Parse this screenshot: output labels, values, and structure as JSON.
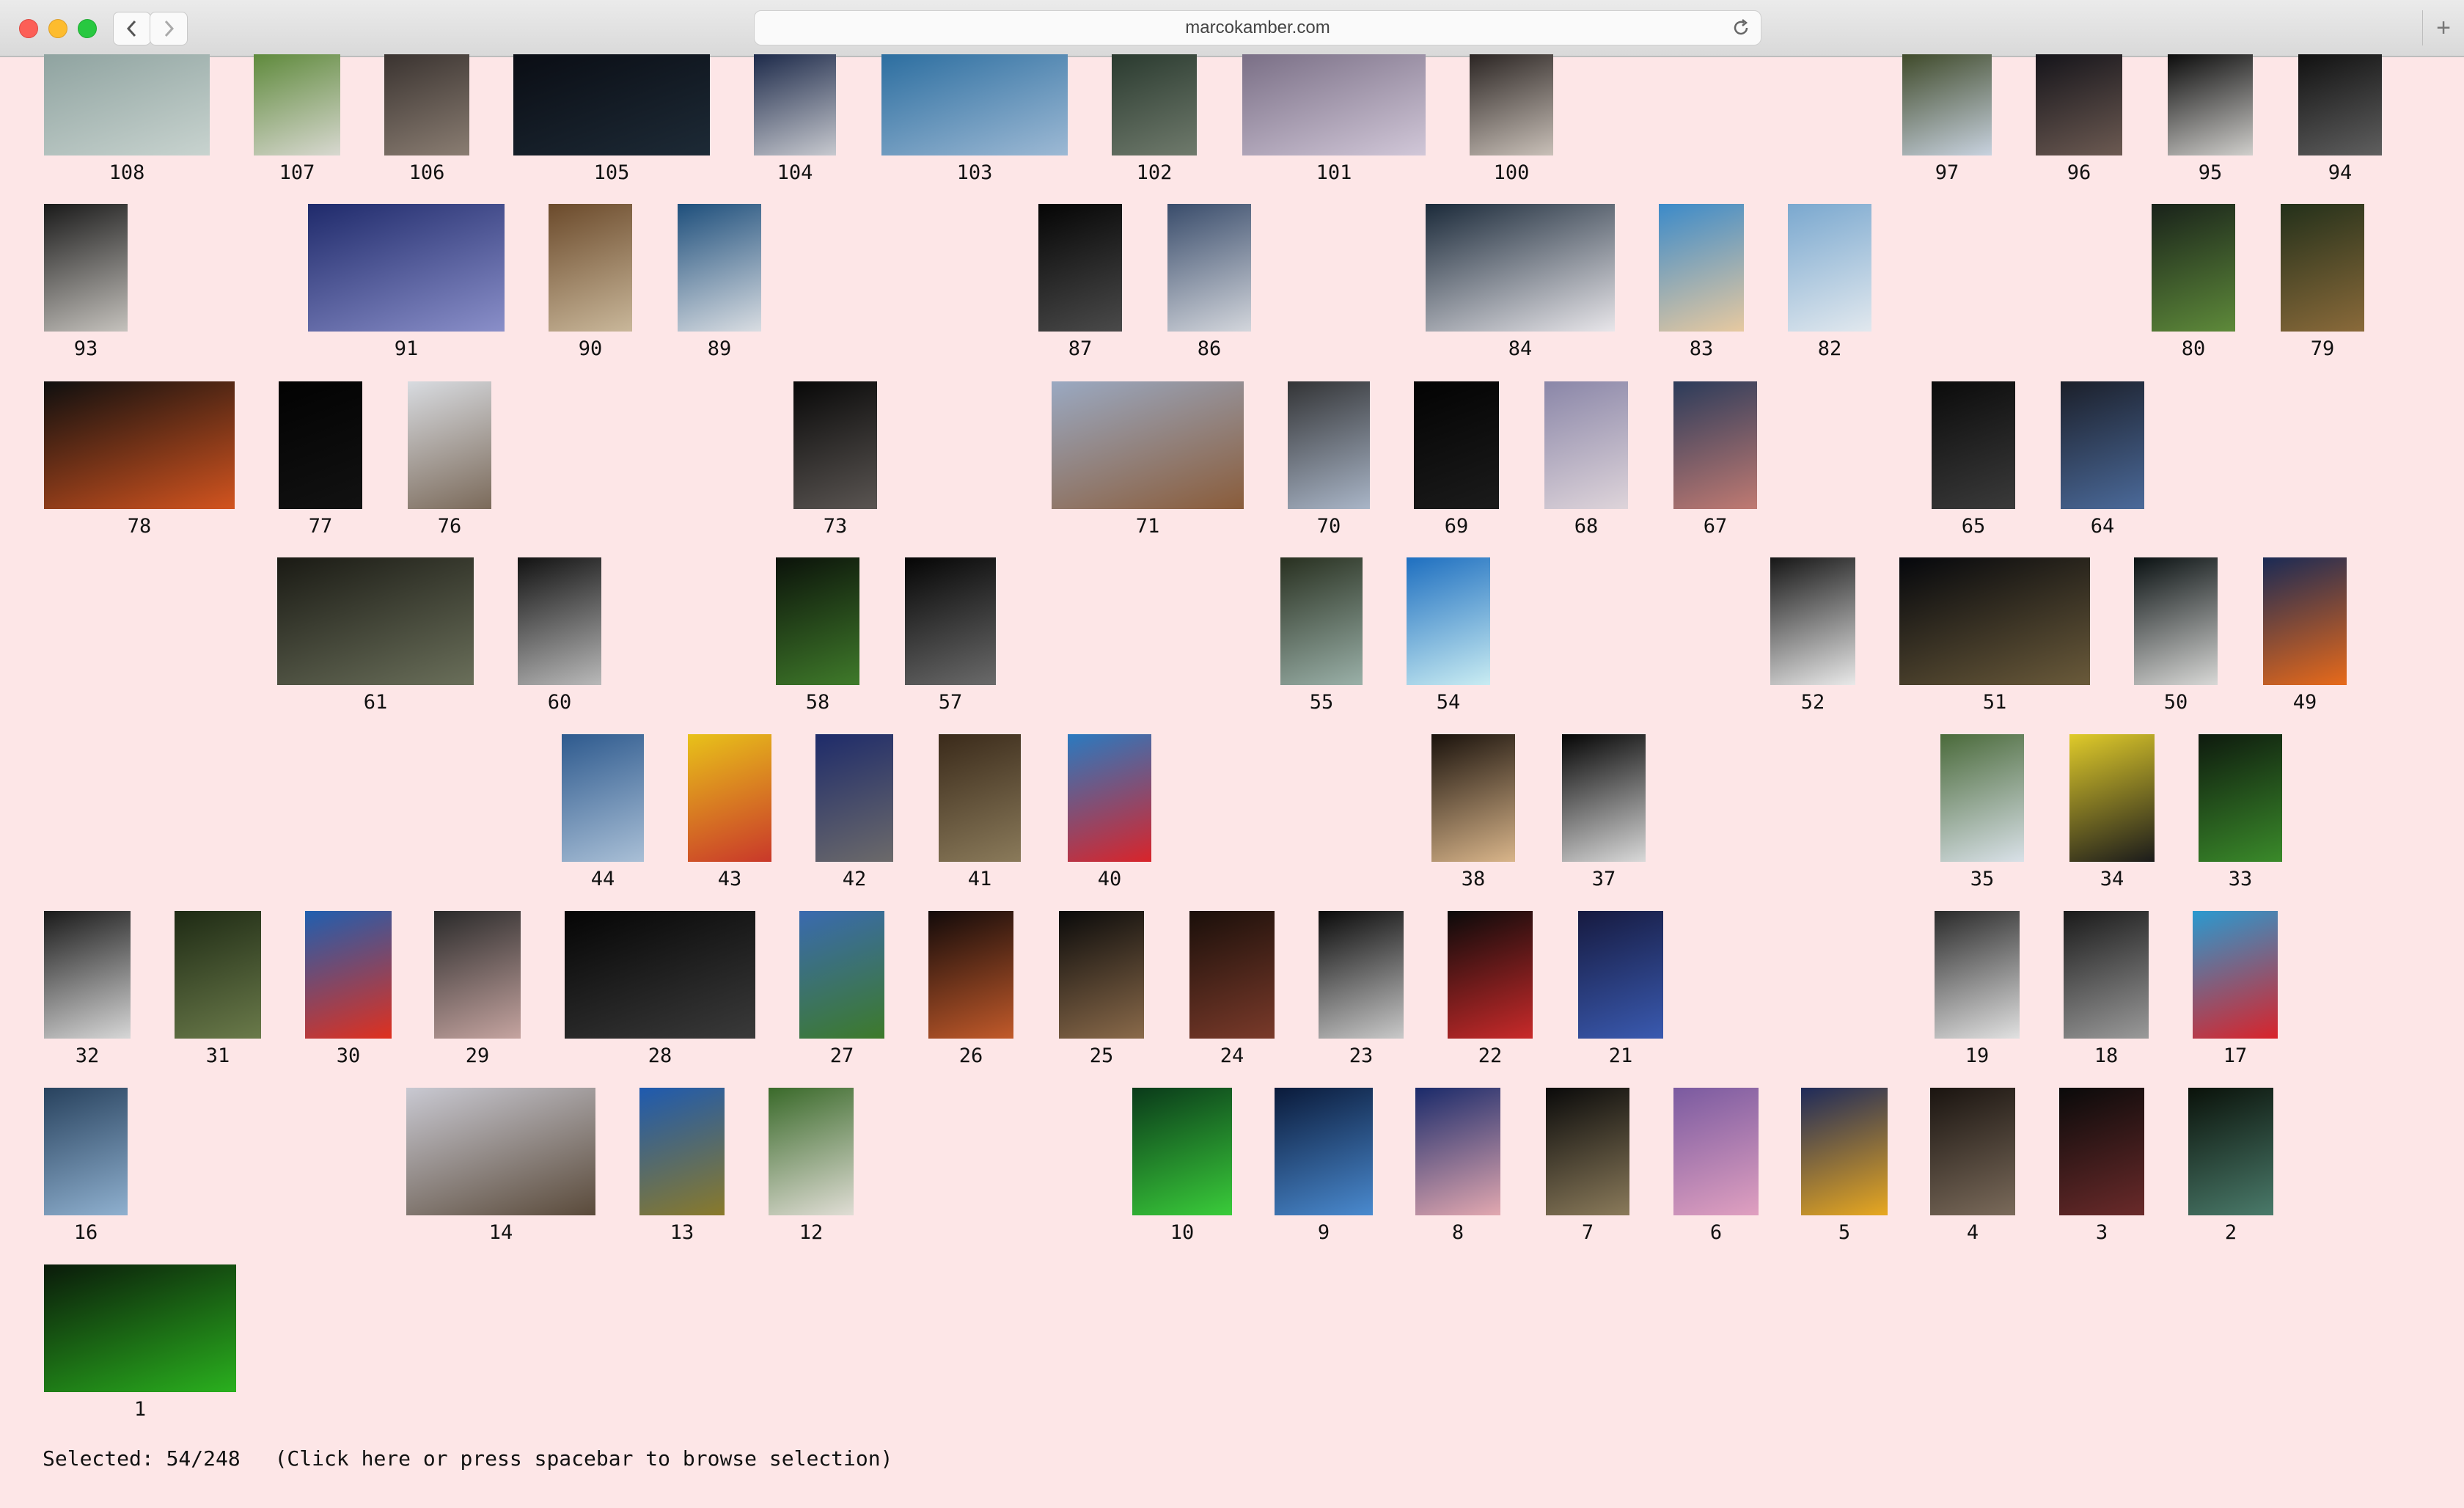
{
  "browser": {
    "url": "marcokamber.com",
    "new_tab_label": "+"
  },
  "thumbnails": [
    {
      "label": "108",
      "c1": "#8fa3a0",
      "c2": "#c8d3cf"
    },
    {
      "label": "107",
      "c1": "#5f8a3c",
      "c2": "#d8d8d0"
    },
    {
      "label": "106",
      "c1": "#3a3330",
      "c2": "#8a7d72"
    },
    {
      "label": "105",
      "c1": "#0a0d14",
      "c2": "#1d2a36"
    },
    {
      "label": "104",
      "c1": "#1d2a4a",
      "c2": "#c7c9cf"
    },
    {
      "label": "103",
      "c1": "#2c6ea0",
      "c2": "#9db9d4"
    },
    {
      "label": "102",
      "c1": "#2a3a2f",
      "c2": "#6f7a6c"
    },
    {
      "label": "101",
      "c1": "#7a6f86",
      "c2": "#d1c7d8"
    },
    {
      "label": "100",
      "c1": "#2b2523",
      "c2": "#c9c0b8"
    },
    {
      "label": "97",
      "c1": "#3f4a2a",
      "c2": "#c8d2df"
    },
    {
      "label": "96",
      "c1": "#15141a",
      "c2": "#6c5a52"
    },
    {
      "label": "95",
      "c1": "#0c0c0c",
      "c2": "#d0cfcc"
    },
    {
      "label": "94",
      "c1": "#111111",
      "c2": "#5f5f5f"
    },
    {
      "label": "93",
      "c1": "#1a1a1a",
      "c2": "#c5c2bd"
    },
    {
      "label": "91",
      "c1": "#1f2a6b",
      "c2": "#8a8fc9"
    },
    {
      "label": "90",
      "c1": "#6b4a2b",
      "c2": "#c9b79a"
    },
    {
      "label": "89",
      "c1": "#1e4f7c",
      "c2": "#d9dde2"
    },
    {
      "label": "87",
      "c1": "#050505",
      "c2": "#4a4a4a"
    },
    {
      "label": "86",
      "c1": "#394c6b",
      "c2": "#d3d6dc"
    },
    {
      "label": "84",
      "c1": "#1b2a3a",
      "c2": "#e8e6ea"
    },
    {
      "label": "83",
      "c1": "#3b8ac9",
      "c2": "#e7c9a0"
    },
    {
      "label": "82",
      "c1": "#7aa8cf",
      "c2": "#e1e8ee"
    },
    {
      "label": "80",
      "c1": "#19221a",
      "c2": "#5e8a3a"
    },
    {
      "label": "79",
      "c1": "#23301a",
      "c2": "#8a6a3a"
    },
    {
      "label": "78",
      "c1": "#0f0f0f",
      "c2": "#d3541f"
    },
    {
      "label": "77",
      "c1": "#020202",
      "c2": "#121212"
    },
    {
      "label": "76",
      "c1": "#d8dbe0",
      "c2": "#7b6a5a"
    },
    {
      "label": "73",
      "c1": "#080808",
      "c2": "#5a5552"
    },
    {
      "label": "71",
      "c1": "#9aa9c2",
      "c2": "#8a5c3a"
    },
    {
      "label": "70",
      "c1": "#333436",
      "c2": "#a9b5c7"
    },
    {
      "label": "69",
      "c1": "#030303",
      "c2": "#1b1b1b"
    },
    {
      "label": "68",
      "c1": "#8a86a8",
      "c2": "#ded4da"
    },
    {
      "label": "67",
      "c1": "#2b3b5a",
      "c2": "#c07a72"
    },
    {
      "label": "65",
      "c1": "#0b0b0b",
      "c2": "#3a3a3a"
    },
    {
      "label": "64",
      "c1": "#1b1f2a",
      "c2": "#4b6a9a"
    },
    {
      "label": "61",
      "c1": "#1a1a14",
      "c2": "#6a6f5a"
    },
    {
      "label": "60",
      "c1": "#121212",
      "c2": "#b9b9b9"
    },
    {
      "label": "58",
      "c1": "#0b120a",
      "c2": "#3f7a2a"
    },
    {
      "label": "57",
      "c1": "#050505",
      "c2": "#6a6a6a"
    },
    {
      "label": "55",
      "c1": "#283020",
      "c2": "#9ab0a8"
    },
    {
      "label": "54",
      "c1": "#1e6fc0",
      "c2": "#c9ecf2"
    },
    {
      "label": "52",
      "c1": "#161616",
      "c2": "#e9e9e9"
    },
    {
      "label": "51",
      "c1": "#05070c",
      "c2": "#6a5a3a"
    },
    {
      "label": "50",
      "c1": "#0a1112",
      "c2": "#d8d8d6"
    },
    {
      "label": "49",
      "c1": "#1a2a55",
      "c2": "#e86a1a"
    },
    {
      "label": "44",
      "c1": "#2e5a8e",
      "c2": "#a9bfd6"
    },
    {
      "label": "43",
      "c1": "#e8c21a",
      "c2": "#c9382a"
    },
    {
      "label": "42",
      "c1": "#1e2b6a",
      "c2": "#6c6a6a"
    },
    {
      "label": "41",
      "c1": "#3a2a1a",
      "c2": "#8a7a5a"
    },
    {
      "label": "40",
      "c1": "#2a7ac0",
      "c2": "#d9242a"
    },
    {
      "label": "38",
      "c1": "#1a120c",
      "c2": "#d9b58a"
    },
    {
      "label": "37",
      "c1": "#050505",
      "c2": "#d9d9d9"
    },
    {
      "label": "35",
      "c1": "#4a6a3a",
      "c2": "#d9e1e8"
    },
    {
      "label": "34",
      "c1": "#e0cb2a",
      "c2": "#1b1b1b"
    },
    {
      "label": "33",
      "c1": "#0e1a0e",
      "c2": "#3a8a2a"
    },
    {
      "label": "32",
      "c1": "#1a1a1a",
      "c2": "#d7d7d7"
    },
    {
      "label": "31",
      "c1": "#1e2a14",
      "c2": "#6a7a4a"
    },
    {
      "label": "30",
      "c1": "#1f5fb0",
      "c2": "#e0301e"
    },
    {
      "label": "29",
      "c1": "#2a2a2a",
      "c2": "#c5a4a0"
    },
    {
      "label": "28",
      "c1": "#050505",
      "c2": "#3a3a3a"
    },
    {
      "label": "27",
      "c1": "#3a6ab0",
      "c2": "#3d7a2a"
    },
    {
      "label": "26",
      "c1": "#120a0a",
      "c2": "#c25a2a"
    },
    {
      "label": "25",
      "c1": "#0a0a0a",
      "c2": "#8a6a4a"
    },
    {
      "label": "24",
      "c1": "#1a0f0a",
      "c2": "#7a3a2a"
    },
    {
      "label": "23",
      "c1": "#0a0a0a",
      "c2": "#c9c9c9"
    },
    {
      "label": "22",
      "c1": "#0a0a0a",
      "c2": "#c92a2a"
    },
    {
      "label": "21",
      "c1": "#161a40",
      "c2": "#3a5ab0"
    },
    {
      "label": "19",
      "c1": "#2a2a2a",
      "c2": "#e1e1e1"
    },
    {
      "label": "18",
      "c1": "#1a1a1a",
      "c2": "#9a9a9a"
    },
    {
      "label": "17",
      "c1": "#2a9ad0",
      "c2": "#d9232a"
    },
    {
      "label": "16",
      "c1": "#28425e",
      "c2": "#8fb0cf"
    },
    {
      "label": "14",
      "c1": "#c9c9d2",
      "c2": "#5a4a3a"
    },
    {
      "label": "13",
      "c1": "#1e5ab0",
      "c2": "#8a7a2a"
    },
    {
      "label": "12",
      "c1": "#3a6a2a",
      "c2": "#e0ddd5"
    },
    {
      "label": "10",
      "c1": "#0a3a1a",
      "c2": "#3acc3a"
    },
    {
      "label": "9",
      "c1": "#0a1a3a",
      "c2": "#4a8acf"
    },
    {
      "label": "8",
      "c1": "#1a2a6a",
      "c2": "#e2a8b0"
    },
    {
      "label": "7",
      "c1": "#0a0a0a",
      "c2": "#8a7a5a"
    },
    {
      "label": "6",
      "c1": "#7a5aa0",
      "c2": "#e0a0c0"
    },
    {
      "label": "5",
      "c1": "#1e2a5a",
      "c2": "#e8a820"
    },
    {
      "label": "4",
      "c1": "#1a1410",
      "c2": "#7a6a5a"
    },
    {
      "label": "3",
      "c1": "#0a0a0a",
      "c2": "#6a2a2a"
    },
    {
      "label": "2",
      "c1": "#0a120a",
      "c2": "#4a7a6a"
    },
    {
      "label": "1",
      "c1": "#0a1a0a",
      "c2": "#2ab01e"
    }
  ],
  "status": {
    "selected_text": "Selected: 54/248",
    "hint_text": "(Click here or press spacebar to browse selection)"
  }
}
